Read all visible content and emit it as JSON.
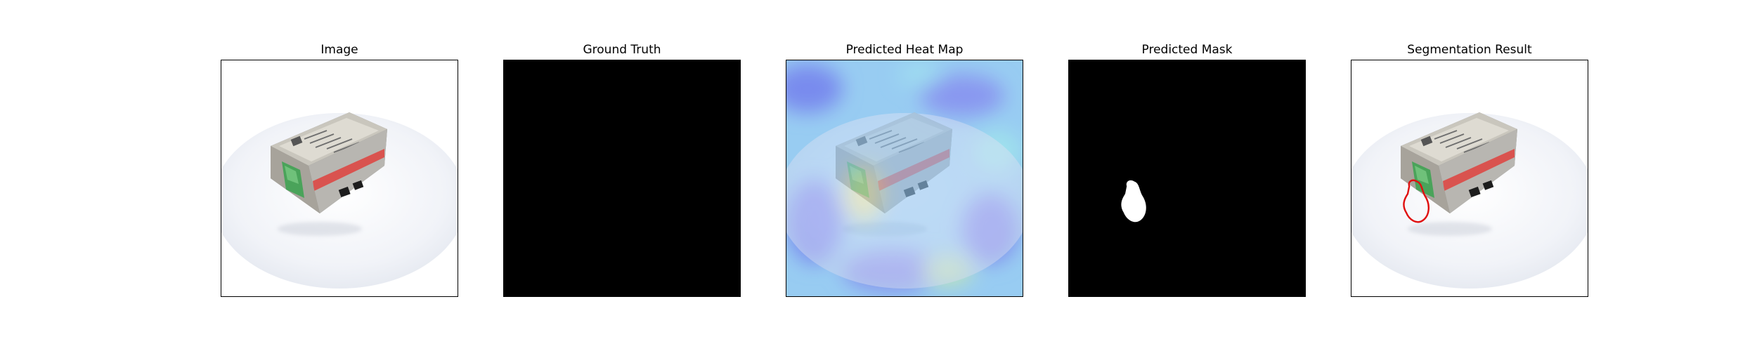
{
  "panels": [
    {
      "title": "Image"
    },
    {
      "title": "Ground Truth"
    },
    {
      "title": "Predicted Heat Map"
    },
    {
      "title": "Predicted Mask"
    },
    {
      "title": "Segmentation Result"
    }
  ],
  "colors": {
    "background": "#ffffff",
    "mask_background": "#000000",
    "mask_region": "#ffffff",
    "contour": "#e01010",
    "heatmap_base": "#9fd8f4"
  }
}
